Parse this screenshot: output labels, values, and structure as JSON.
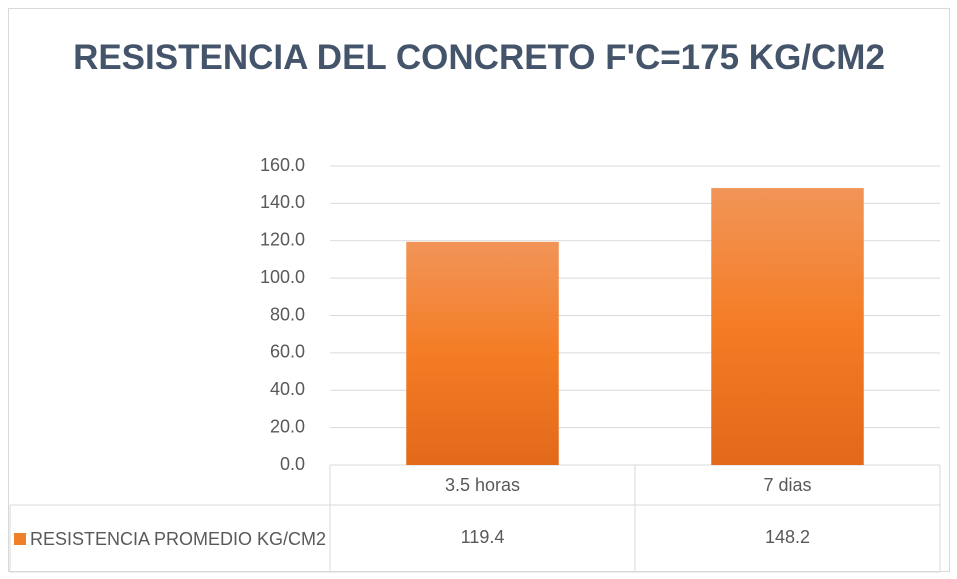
{
  "chart_data": {
    "type": "bar",
    "title": "RESISTENCIA DEL CONCRETO F'C=175 KG/CM2",
    "categories": [
      "3.5 horas",
      "7 dias"
    ],
    "series": [
      {
        "name": "RESISTENCIA PROMEDIO KG/CM2",
        "color": "#f07f2a",
        "values": [
          119.4,
          148.2
        ]
      }
    ],
    "ylim": [
      0,
      160
    ],
    "yticks": [
      {
        "value": 0,
        "label": "0.0"
      },
      {
        "value": 20,
        "label": "20.0"
      },
      {
        "value": 40,
        "label": "40.0"
      },
      {
        "value": 60,
        "label": "60.0"
      },
      {
        "value": 80,
        "label": "80.0"
      },
      {
        "value": 100,
        "label": "100.0"
      },
      {
        "value": 120,
        "label": "120.0"
      },
      {
        "value": 140,
        "label": "140.0"
      },
      {
        "value": 160,
        "label": "160.0"
      }
    ],
    "grid": true,
    "data_table": true
  }
}
